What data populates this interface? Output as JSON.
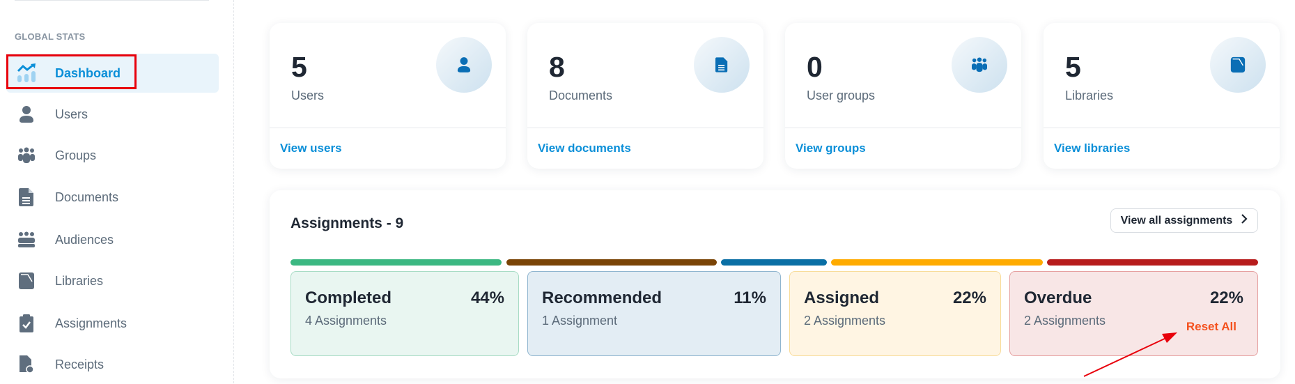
{
  "sidebar": {
    "section_label": "GLOBAL STATS",
    "items": [
      {
        "label": "Dashboard",
        "icon": "chart-trend-icon",
        "active": true
      },
      {
        "label": "Users",
        "icon": "user-icon"
      },
      {
        "label": "Groups",
        "icon": "groups-icon"
      },
      {
        "label": "Documents",
        "icon": "document-icon"
      },
      {
        "label": "Audiences",
        "icon": "audiences-icon"
      },
      {
        "label": "Libraries",
        "icon": "library-icon"
      },
      {
        "label": "Assignments",
        "icon": "clipboard-check-icon"
      },
      {
        "label": "Receipts",
        "icon": "receipt-icon"
      }
    ]
  },
  "stats": [
    {
      "value": "5",
      "label": "Users",
      "link": "View users",
      "icon": "user-icon"
    },
    {
      "value": "8",
      "label": "Documents",
      "link": "View documents",
      "icon": "document-icon"
    },
    {
      "value": "0",
      "label": "User groups",
      "link": "View groups",
      "icon": "groups-icon"
    },
    {
      "value": "5",
      "label": "Libraries",
      "link": "View libraries",
      "icon": "library-icon"
    }
  ],
  "assignments": {
    "title": "Assignments - 9",
    "view_all_label": "View all assignments",
    "reset_label": "Reset All",
    "categories": [
      {
        "name": "Completed",
        "percent": "44%",
        "count": "4 Assignments",
        "color": "#3cb882"
      },
      {
        "name": "Recommended",
        "percent": "11%",
        "count": "1 Assignment",
        "color": "#7a4406"
      },
      {
        "name": "Assigned",
        "percent": "22%",
        "count": "2 Assignments",
        "color": "#ffab00"
      },
      {
        "name": "Overdue",
        "percent": "22%",
        "count": "2 Assignments",
        "color": "#b71c1c"
      }
    ],
    "bar_colors": [
      "#3cb882",
      "#7a4406",
      "#0a6fa5",
      "#ffab00",
      "#b71c1c"
    ]
  },
  "colors": {
    "accent": "#0b8fd8",
    "icon_blue": "#0a6eb5",
    "highlight_box": "#e8000b",
    "annotation_arrow": "#e8000b"
  }
}
